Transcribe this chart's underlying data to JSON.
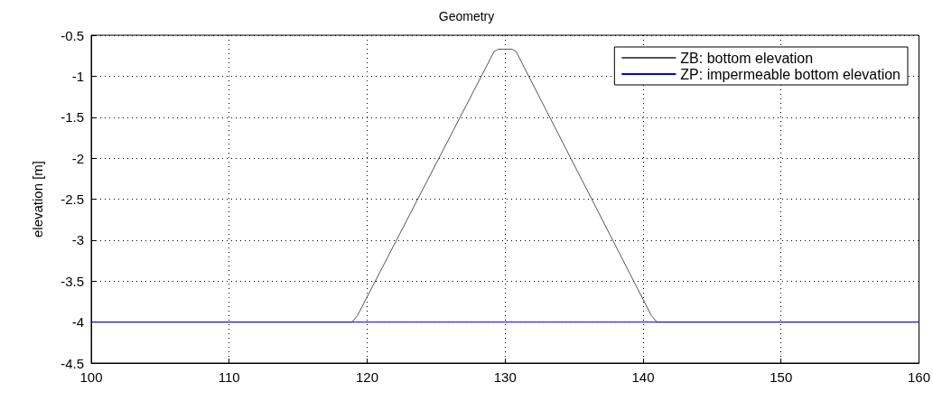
{
  "chart_data": {
    "type": "line",
    "title": "Geometry",
    "ylabel": "elevation [m]",
    "series": [
      {
        "name": "ZB: bottom elevation",
        "color": "#555555",
        "x": [
          100,
          118.9,
          119.3,
          129.2,
          129.5,
          130.5,
          130.8,
          140.6,
          141,
          160
        ],
        "values": [
          -4,
          -4,
          -3.92,
          -0.7,
          -0.67,
          -0.67,
          -0.7,
          -3.92,
          -4,
          -4
        ]
      },
      {
        "name": "ZP: impermeable bottom elevation",
        "color": "#0000ff",
        "x": [
          100,
          160
        ],
        "values": [
          -4,
          -4
        ]
      }
    ],
    "xlim": [
      100,
      160
    ],
    "xticks": [
      100,
      110,
      120,
      130,
      140,
      150,
      160
    ],
    "ylim": [
      -4.5,
      -0.5
    ],
    "yticks": [
      -4.5,
      -4,
      -3.5,
      -3,
      -2.5,
      -2,
      -1.5,
      -1,
      -0.5
    ],
    "grid": true,
    "legend": "top right",
    "marker": "none",
    "line_style": "solid"
  }
}
